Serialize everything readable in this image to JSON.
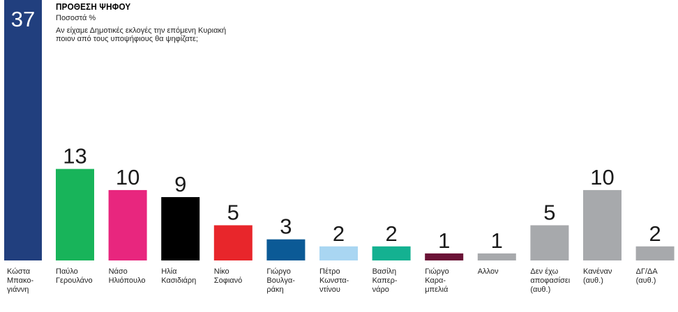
{
  "header": {
    "title": "ΠΡΟΘΕΣΗ ΨΗΦΟΥ",
    "subtitle": "Ποσοστά %",
    "question": "Αν είχαμε Δημοτικές εκλογές την επόμενη Κυριακή\nποιον από τους υποψήφιους θα ψηφίζατε;"
  },
  "chart_data": {
    "type": "bar",
    "title": "ΠΡΟΘΕΣΗ ΨΗΦΟΥ",
    "ylabel": "Ποσοστά %",
    "ylim": [
      0,
      37
    ],
    "grid": false,
    "categories": [
      "Κώστα\nΜπακο-\nγιάννη",
      "Παύλο\nΓερουλάνο",
      "Νάσο\nΗλιόπουλο",
      "Ηλία\nΚασιδιάρη",
      "Νίκο\nΣοφιανό",
      "Γιώργο\nΒουλγα-\nράκη",
      "Πέτρο\nΚωνστα-\nντίνου",
      "Βασίλη\nΚαπερ-\nνάρο",
      "Γιώργο\nΚαρα-\nμπελιά",
      "Αλλον",
      "Δεν έχω\nαποφασίσει\n(αυθ.)",
      "Κανέναν\n(αυθ.)",
      "ΔΓ/ΔΑ\n(αυθ.)"
    ],
    "values": [
      37,
      13,
      10,
      9,
      5,
      3,
      2,
      2,
      1,
      1,
      5,
      10,
      2
    ],
    "colors": [
      "#213f7e",
      "#18b45a",
      "#e8267e",
      "#000000",
      "#e8262b",
      "#0b5a96",
      "#a9d6f2",
      "#14b191",
      "#6a1236",
      "#a7a9ac",
      "#a7a9ac",
      "#a7a9ac",
      "#a7a9ac"
    ]
  }
}
